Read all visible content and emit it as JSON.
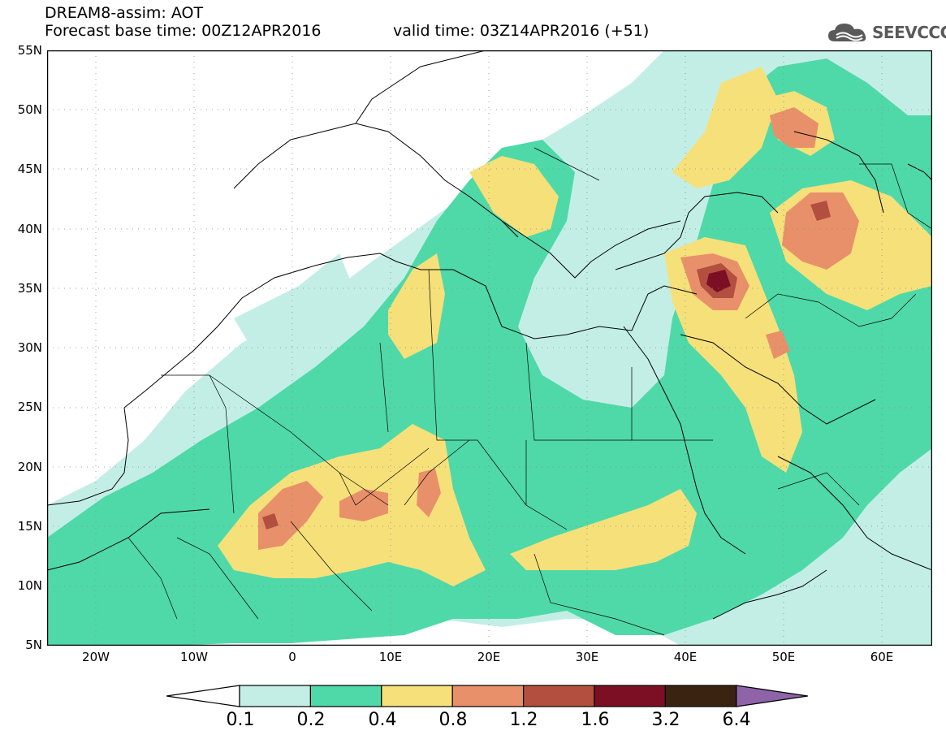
{
  "header": {
    "title": "DREAM8-assim: AOT",
    "base_time": "Forecast base time: 00Z12APR2016",
    "valid_time": "valid time: 03Z14APR2016 (+51)"
  },
  "logo": {
    "text": "SEEVCCC",
    "icon": "cloud-icon"
  },
  "map": {
    "lat_labels": [
      "55N",
      "50N",
      "45N",
      "40N",
      "35N",
      "30N",
      "25N",
      "20N",
      "15N",
      "10N",
      "5N"
    ],
    "lon_labels": [
      "20W",
      "10W",
      "0",
      "10E",
      "20E",
      "30E",
      "40E",
      "50E",
      "60E"
    ],
    "lon_range": [
      -25,
      65
    ],
    "lat_range": [
      5,
      55
    ]
  },
  "legend": {
    "levels": [
      "0.1",
      "0.2",
      "0.4",
      "0.8",
      "1.2",
      "1.6",
      "3.2",
      "6.4"
    ],
    "colors": [
      "#ffffff",
      "#c3eee6",
      "#4fd9a8",
      "#f6e07a",
      "#e8906a",
      "#b24f3f",
      "#7c0f24",
      "#3b2312",
      "#8e63a8"
    ]
  }
}
